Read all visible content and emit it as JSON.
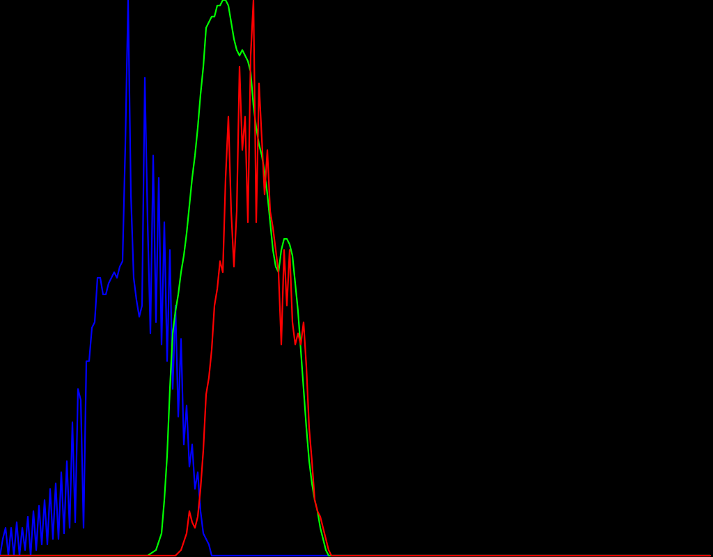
{
  "chart_data": {
    "type": "line",
    "title": "",
    "xlabel": "",
    "ylabel": "",
    "xlim": [
      0,
      255
    ],
    "ylim": [
      0,
      1
    ],
    "grid": false,
    "legend": "none",
    "background": "#000000",
    "series": [
      {
        "color": "#0000ff",
        "points": [
          [
            0,
            0.0
          ],
          [
            1,
            0.03
          ],
          [
            2,
            0.05
          ],
          [
            3,
            0.0
          ],
          [
            4,
            0.05
          ],
          [
            5,
            0.0
          ],
          [
            6,
            0.06
          ],
          [
            7,
            0.0
          ],
          [
            8,
            0.05
          ],
          [
            9,
            0.01
          ],
          [
            10,
            0.07
          ],
          [
            11,
            0.0
          ],
          [
            12,
            0.08
          ],
          [
            13,
            0.01
          ],
          [
            14,
            0.09
          ],
          [
            15,
            0.02
          ],
          [
            16,
            0.1
          ],
          [
            17,
            0.02
          ],
          [
            18,
            0.12
          ],
          [
            19,
            0.03
          ],
          [
            20,
            0.13
          ],
          [
            21,
            0.03
          ],
          [
            22,
            0.15
          ],
          [
            23,
            0.04
          ],
          [
            24,
            0.17
          ],
          [
            25,
            0.05
          ],
          [
            26,
            0.24
          ],
          [
            27,
            0.06
          ],
          [
            28,
            0.3
          ],
          [
            29,
            0.28
          ],
          [
            30,
            0.05
          ],
          [
            31,
            0.35
          ],
          [
            32,
            0.35
          ],
          [
            33,
            0.41
          ],
          [
            34,
            0.42
          ],
          [
            35,
            0.5
          ],
          [
            36,
            0.5
          ],
          [
            37,
            0.47
          ],
          [
            38,
            0.47
          ],
          [
            39,
            0.49
          ],
          [
            40,
            0.5
          ],
          [
            41,
            0.51
          ],
          [
            42,
            0.5
          ],
          [
            43,
            0.52
          ],
          [
            44,
            0.53
          ],
          [
            45,
            0.74
          ],
          [
            46,
            1.0
          ],
          [
            47,
            0.65
          ],
          [
            48,
            0.5
          ],
          [
            49,
            0.46
          ],
          [
            50,
            0.43
          ],
          [
            51,
            0.45
          ],
          [
            52,
            0.86
          ],
          [
            53,
            0.6
          ],
          [
            54,
            0.4
          ],
          [
            55,
            0.72
          ],
          [
            56,
            0.42
          ],
          [
            57,
            0.68
          ],
          [
            58,
            0.38
          ],
          [
            59,
            0.6
          ],
          [
            60,
            0.35
          ],
          [
            61,
            0.55
          ],
          [
            62,
            0.3
          ],
          [
            63,
            0.45
          ],
          [
            64,
            0.25
          ],
          [
            65,
            0.39
          ],
          [
            66,
            0.2
          ],
          [
            67,
            0.27
          ],
          [
            68,
            0.16
          ],
          [
            69,
            0.2
          ],
          [
            70,
            0.12
          ],
          [
            71,
            0.15
          ],
          [
            72,
            0.08
          ],
          [
            73,
            0.04
          ],
          [
            74,
            0.03
          ],
          [
            75,
            0.02
          ],
          [
            76,
            0.0
          ],
          [
            77,
            0.0
          ],
          [
            80,
            0.0
          ],
          [
            255,
            0.0
          ]
        ]
      },
      {
        "color": "#00ff00",
        "points": [
          [
            0,
            0.0
          ],
          [
            53,
            0.0
          ],
          [
            56,
            0.01
          ],
          [
            58,
            0.04
          ],
          [
            59,
            0.1
          ],
          [
            60,
            0.18
          ],
          [
            61,
            0.3
          ],
          [
            62,
            0.4
          ],
          [
            63,
            0.44
          ],
          [
            64,
            0.47
          ],
          [
            65,
            0.51
          ],
          [
            66,
            0.54
          ],
          [
            67,
            0.58
          ],
          [
            68,
            0.63
          ],
          [
            69,
            0.68
          ],
          [
            70,
            0.72
          ],
          [
            71,
            0.77
          ],
          [
            72,
            0.83
          ],
          [
            73,
            0.88
          ],
          [
            74,
            0.95
          ],
          [
            75,
            0.96
          ],
          [
            76,
            0.97
          ],
          [
            77,
            0.97
          ],
          [
            78,
            0.99
          ],
          [
            79,
            0.99
          ],
          [
            80,
            1.0
          ],
          [
            81,
            1.0
          ],
          [
            82,
            0.99
          ],
          [
            83,
            0.96
          ],
          [
            84,
            0.93
          ],
          [
            85,
            0.91
          ],
          [
            86,
            0.9
          ],
          [
            87,
            0.91
          ],
          [
            88,
            0.9
          ],
          [
            89,
            0.89
          ],
          [
            90,
            0.87
          ],
          [
            91,
            0.81
          ],
          [
            92,
            0.77
          ],
          [
            93,
            0.74
          ],
          [
            94,
            0.72
          ],
          [
            95,
            0.69
          ],
          [
            96,
            0.65
          ],
          [
            97,
            0.6
          ],
          [
            98,
            0.55
          ],
          [
            99,
            0.52
          ],
          [
            100,
            0.51
          ],
          [
            101,
            0.55
          ],
          [
            102,
            0.57
          ],
          [
            103,
            0.57
          ],
          [
            104,
            0.56
          ],
          [
            105,
            0.54
          ],
          [
            106,
            0.49
          ],
          [
            107,
            0.44
          ],
          [
            108,
            0.37
          ],
          [
            109,
            0.3
          ],
          [
            110,
            0.23
          ],
          [
            111,
            0.17
          ],
          [
            112,
            0.13
          ],
          [
            113,
            0.1
          ],
          [
            114,
            0.08
          ],
          [
            115,
            0.05
          ],
          [
            116,
            0.03
          ],
          [
            117,
            0.01
          ],
          [
            118,
            0.0
          ],
          [
            120,
            0.0
          ],
          [
            255,
            0.0
          ]
        ]
      },
      {
        "color": "#ff0000",
        "points": [
          [
            0,
            0.0
          ],
          [
            63,
            0.0
          ],
          [
            65,
            0.01
          ],
          [
            67,
            0.04
          ],
          [
            68,
            0.08
          ],
          [
            69,
            0.06
          ],
          [
            70,
            0.05
          ],
          [
            71,
            0.07
          ],
          [
            72,
            0.12
          ],
          [
            73,
            0.19
          ],
          [
            74,
            0.29
          ],
          [
            75,
            0.32
          ],
          [
            76,
            0.37
          ],
          [
            77,
            0.45
          ],
          [
            78,
            0.48
          ],
          [
            79,
            0.53
          ],
          [
            80,
            0.51
          ],
          [
            81,
            0.68
          ],
          [
            82,
            0.79
          ],
          [
            83,
            0.62
          ],
          [
            84,
            0.52
          ],
          [
            85,
            0.62
          ],
          [
            86,
            0.88
          ],
          [
            87,
            0.73
          ],
          [
            88,
            0.79
          ],
          [
            89,
            0.6
          ],
          [
            90,
            0.9
          ],
          [
            91,
            1.0
          ],
          [
            92,
            0.6
          ],
          [
            93,
            0.85
          ],
          [
            94,
            0.75
          ],
          [
            95,
            0.65
          ],
          [
            96,
            0.73
          ],
          [
            97,
            0.62
          ],
          [
            98,
            0.59
          ],
          [
            99,
            0.55
          ],
          [
            100,
            0.51
          ],
          [
            101,
            0.38
          ],
          [
            102,
            0.55
          ],
          [
            103,
            0.45
          ],
          [
            104,
            0.55
          ],
          [
            105,
            0.42
          ],
          [
            106,
            0.38
          ],
          [
            107,
            0.4
          ],
          [
            108,
            0.38
          ],
          [
            109,
            0.42
          ],
          [
            110,
            0.34
          ],
          [
            111,
            0.23
          ],
          [
            112,
            0.17
          ],
          [
            113,
            0.1
          ],
          [
            114,
            0.08
          ],
          [
            115,
            0.07
          ],
          [
            116,
            0.05
          ],
          [
            117,
            0.03
          ],
          [
            118,
            0.01
          ],
          [
            119,
            0.0
          ],
          [
            121,
            0.0
          ],
          [
            255,
            0.0
          ]
        ]
      }
    ]
  }
}
